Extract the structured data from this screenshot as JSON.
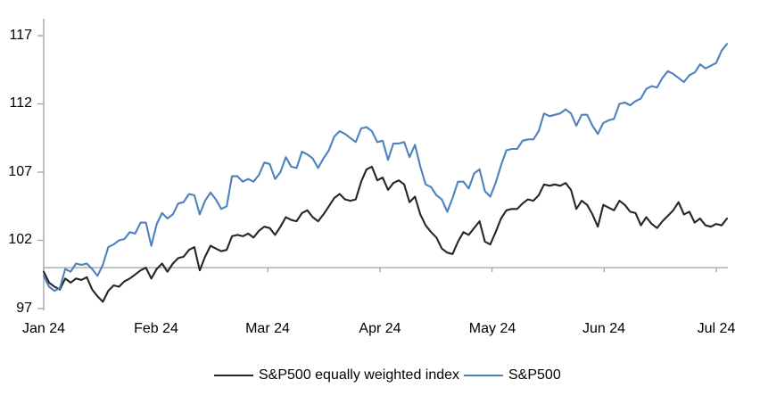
{
  "chart_data": {
    "type": "line",
    "title": "",
    "xlabel": "",
    "ylabel": "",
    "ylim": [
      97,
      117
    ],
    "grid": false,
    "baseline_value": 100,
    "legend_position": "bottom",
    "axis_color": "#a0a0a0",
    "tick_label_color": "#000000",
    "ytick_labels": [
      "117",
      "112",
      "107",
      "102",
      "97"
    ],
    "yticks": [
      117,
      112,
      107,
      102,
      97
    ],
    "xtick_labels": [
      "Jan 24",
      "Feb 24",
      "Mar 24",
      "Apr 24",
      "May 24",
      "Jun 24",
      "Jul 24"
    ],
    "series": [
      {
        "name": "S&P500 equally weighted index",
        "color": "#262626",
        "values": [
          99.7,
          98.9,
          98.6,
          98.4,
          99.2,
          98.9,
          99.2,
          99.1,
          99.3,
          98.4,
          97.9,
          97.5,
          98.3,
          98.7,
          98.6,
          99.0,
          99.2,
          99.5,
          99.8,
          100.0,
          99.2,
          99.9,
          100.3,
          99.7,
          100.3,
          100.7,
          100.8,
          101.3,
          101.5,
          99.8,
          100.8,
          101.6,
          101.4,
          101.2,
          101.3,
          102.3,
          102.4,
          102.3,
          102.5,
          102.2,
          102.7,
          103.0,
          102.9,
          102.4,
          103.0,
          103.7,
          103.5,
          103.4,
          104.0,
          104.2,
          103.7,
          103.4,
          103.9,
          104.5,
          105.1,
          105.4,
          105.0,
          104.9,
          105.0,
          106.3,
          107.2,
          107.4,
          106.4,
          106.6,
          105.7,
          106.2,
          106.4,
          106.1,
          104.8,
          105.2,
          103.9,
          103.1,
          102.6,
          102.2,
          101.4,
          101.1,
          101.0,
          101.9,
          102.6,
          102.4,
          102.9,
          103.4,
          101.9,
          101.7,
          102.6,
          103.6,
          104.2,
          104.3,
          104.3,
          104.7,
          105.0,
          104.9,
          105.3,
          106.1,
          106.0,
          106.1,
          106.0,
          106.2,
          105.7,
          104.3,
          104.9,
          104.6,
          103.9,
          103.0,
          104.6,
          104.4,
          104.2,
          104.9,
          104.6,
          104.1,
          104.0,
          103.1,
          103.7,
          103.2,
          102.9,
          103.4,
          103.8,
          104.2,
          104.8,
          103.9,
          104.1,
          103.3,
          103.6,
          103.1,
          103.0,
          103.2,
          103.1,
          103.6
        ]
      },
      {
        "name": "S&P500",
        "color": "#4e81bd",
        "values": [
          99.4,
          98.6,
          98.3,
          98.5,
          99.9,
          99.7,
          100.3,
          100.2,
          100.3,
          99.9,
          99.4,
          100.2,
          101.5,
          101.7,
          102.0,
          102.1,
          102.6,
          102.5,
          103.3,
          103.3,
          101.6,
          103.2,
          104.0,
          103.6,
          103.9,
          104.7,
          104.8,
          105.4,
          105.3,
          103.9,
          104.9,
          105.5,
          105.0,
          104.3,
          104.5,
          106.7,
          106.7,
          106.3,
          106.5,
          106.3,
          106.8,
          107.7,
          107.6,
          106.5,
          107.0,
          108.1,
          107.4,
          107.3,
          108.5,
          108.3,
          108.0,
          107.3,
          108.0,
          108.6,
          109.6,
          110.0,
          109.8,
          109.5,
          109.2,
          110.2,
          110.3,
          110.0,
          109.2,
          109.3,
          107.9,
          109.1,
          109.1,
          109.2,
          108.1,
          109.0,
          107.4,
          106.1,
          105.9,
          105.3,
          105.0,
          104.1,
          105.1,
          106.3,
          106.3,
          105.8,
          106.9,
          107.2,
          105.6,
          105.2,
          106.2,
          107.5,
          108.6,
          108.7,
          108.7,
          109.3,
          109.4,
          109.4,
          110.0,
          111.3,
          111.1,
          111.2,
          111.3,
          111.6,
          111.3,
          110.4,
          111.2,
          111.2,
          110.4,
          109.8,
          110.6,
          110.8,
          110.9,
          112.0,
          112.1,
          111.9,
          112.2,
          112.4,
          113.1,
          113.3,
          113.2,
          113.9,
          114.4,
          114.2,
          113.9,
          113.6,
          114.1,
          114.3,
          114.9,
          114.6,
          114.8,
          115.0,
          115.9,
          116.4
        ]
      }
    ]
  },
  "legend": {
    "item0_label": "S&P500 equally weighted index",
    "item1_label": "S&P500"
  }
}
